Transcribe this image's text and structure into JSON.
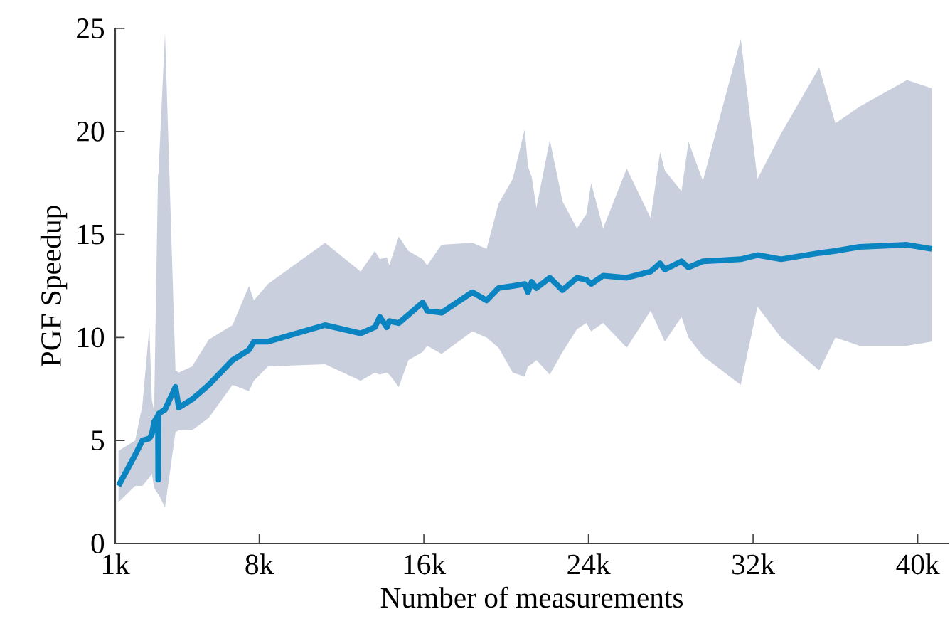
{
  "chart_data": {
    "type": "line",
    "xlabel": "Number of measurements",
    "ylabel": "PGF Speedup",
    "xlim": [
      1000,
      41500
    ],
    "ylim": [
      0,
      25
    ],
    "xticks": [
      {
        "value": 1000,
        "label": "1k"
      },
      {
        "value": 8000,
        "label": "8k"
      },
      {
        "value": 16000,
        "label": "16k"
      },
      {
        "value": 24000,
        "label": "24k"
      },
      {
        "value": 32000,
        "label": "32k"
      },
      {
        "value": 40000,
        "label": "40k"
      }
    ],
    "yticks": [
      0,
      5,
      10,
      15,
      20,
      25
    ],
    "grid": false,
    "series": [
      {
        "color": "#0a85c2",
        "x": [
          1160,
          1970,
          2320,
          2660,
          2780,
          2890,
          3080,
          3090,
          3100,
          3420,
          3930,
          4090,
          4740,
          5550,
          6700,
          7500,
          7740,
          8430,
          11200,
          12930,
          13620,
          13860,
          14200,
          14320,
          14780,
          15250,
          15940,
          16160,
          16860,
          18360,
          19050,
          19630,
          20320,
          20900,
          21060,
          21240,
          21470,
          22120,
          22740,
          23440,
          23900,
          24130,
          24710,
          25860,
          27020,
          27480,
          27710,
          28520,
          28860,
          29560,
          31400,
          32210,
          33360,
          35210,
          36000,
          37170,
          39480,
          40680
        ],
        "values": [
          2.8,
          4.3,
          5.0,
          5.1,
          5.3,
          5.9,
          6.2,
          3.1,
          6.3,
          6.5,
          7.6,
          6.6,
          7.0,
          7.7,
          8.9,
          9.4,
          9.8,
          9.8,
          10.6,
          10.2,
          10.5,
          11.0,
          10.5,
          10.8,
          10.7,
          11.1,
          11.7,
          11.3,
          11.2,
          12.2,
          11.8,
          12.4,
          12.5,
          12.6,
          12.2,
          12.7,
          12.4,
          12.9,
          12.3,
          12.9,
          12.8,
          12.6,
          13.0,
          12.9,
          13.2,
          13.6,
          13.3,
          13.7,
          13.4,
          13.7,
          13.8,
          14.0,
          13.8,
          14.1,
          14.2,
          14.4,
          14.5,
          14.3
        ],
        "upper": [
          4.5,
          5.0,
          6.7,
          10.5,
          7.0,
          6.4,
          17.9,
          17.9,
          17.9,
          24.8,
          8.4,
          8.3,
          8.6,
          9.9,
          10.6,
          12.5,
          11.8,
          12.6,
          14.6,
          13.2,
          14.2,
          13.8,
          13.9,
          13.5,
          14.9,
          14.2,
          13.8,
          13.5,
          14.5,
          14.6,
          14.3,
          16.5,
          17.7,
          20.1,
          18.3,
          17.8,
          16.3,
          19.6,
          16.6,
          15.3,
          16.0,
          17.5,
          15.3,
          18.2,
          15.8,
          19.0,
          18.1,
          17.1,
          19.5,
          17.6,
          24.5,
          17.7,
          19.9,
          23.1,
          20.4,
          21.2,
          22.5,
          22.1
        ],
        "lower": [
          2.0,
          2.8,
          2.8,
          3.2,
          3.4,
          2.7,
          2.4,
          2.4,
          2.4,
          1.75,
          5.4,
          5.5,
          5.5,
          6.1,
          7.7,
          7.4,
          7.9,
          8.6,
          8.7,
          7.9,
          8.3,
          8.2,
          8.3,
          8.2,
          7.6,
          8.9,
          9.3,
          9.6,
          9.2,
          10.3,
          10.0,
          9.5,
          8.3,
          8.1,
          8.6,
          8.7,
          8.9,
          8.2,
          9.3,
          10.4,
          10.7,
          10.3,
          10.7,
          9.5,
          11.3,
          10.3,
          9.8,
          11.0,
          10.0,
          9.1,
          7.7,
          11.5,
          10.0,
          8.4,
          10.0,
          9.6,
          9.6,
          9.8
        ]
      }
    ]
  }
}
